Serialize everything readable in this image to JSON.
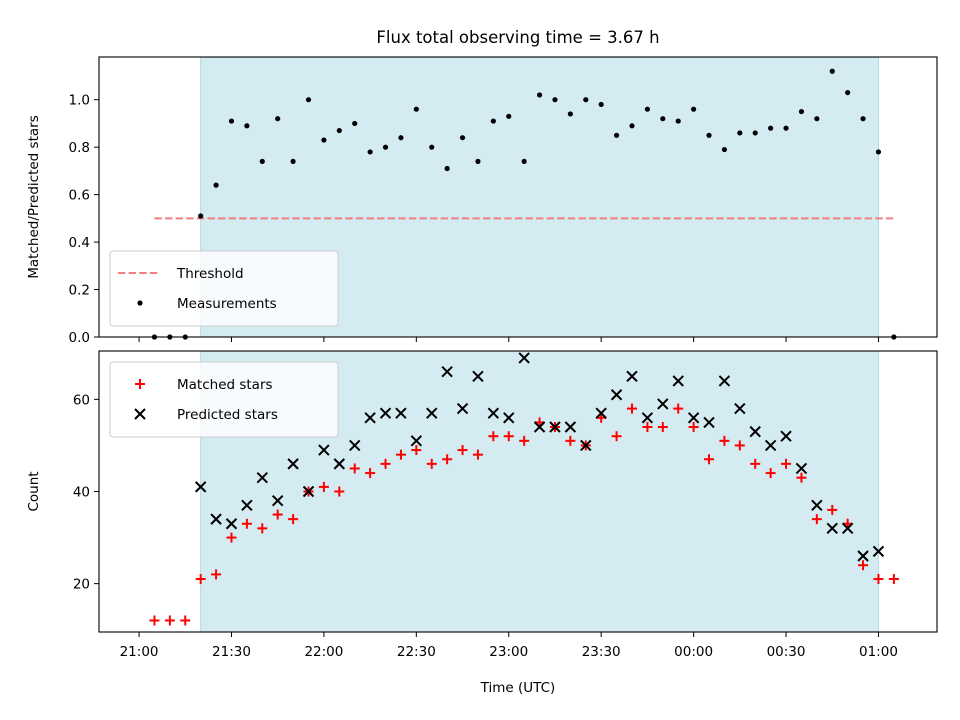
{
  "chart_data": {
    "title": "Flux total observing time = 3.67 h",
    "x_ticks": [
      "21:00",
      "21:30",
      "22:00",
      "22:30",
      "23:00",
      "23:30",
      "00:00",
      "00:30",
      "01:00"
    ],
    "xlabel": "Time (UTC)",
    "x_unit": "minutes after 21:00 UTC",
    "shaded_region": {
      "from": 20,
      "to": 240,
      "color": "#add8e6"
    },
    "panels": [
      {
        "type": "scatter",
        "ylabel": "Matched/Predicted stars",
        "ylim": [
          0,
          1.18
        ],
        "y_ticks": [
          "0.0",
          "0.2",
          "0.4",
          "0.6",
          "0.8",
          "1.0"
        ],
        "legend_position": "lower-left",
        "threshold": {
          "name": "Threshold",
          "value": 0.5,
          "x_range": [
            5,
            245
          ],
          "color": "#f08080"
        },
        "series": [
          {
            "name": "Measurements",
            "color": "#000000",
            "x": [
              5,
              10,
              15,
              20,
              25,
              30,
              35,
              40,
              45,
              50,
              55,
              60,
              65,
              70,
              75,
              80,
              85,
              90,
              95,
              100,
              105,
              110,
              115,
              120,
              125,
              130,
              135,
              140,
              145,
              150,
              155,
              160,
              165,
              170,
              175,
              180,
              185,
              190,
              195,
              200,
              205,
              210,
              215,
              220,
              225,
              230,
              235,
              240,
              245
            ],
            "y": [
              0,
              0,
              0,
              0.51,
              0.64,
              0.91,
              0.89,
              0.74,
              0.92,
              0.74,
              1.0,
              0.83,
              0.87,
              0.9,
              0.78,
              0.8,
              0.84,
              0.96,
              0.8,
              0.71,
              0.84,
              0.74,
              0.91,
              0.93,
              0.74,
              1.02,
              1.0,
              0.94,
              1.0,
              0.98,
              0.85,
              0.89,
              0.96,
              0.92,
              0.91,
              0.96,
              0.85,
              0.79,
              0.86,
              0.86,
              0.88,
              0.88,
              0.95,
              0.92,
              1.12,
              1.03,
              0.92,
              0.78,
              0
            ]
          }
        ]
      },
      {
        "type": "scatter",
        "ylabel": "Count",
        "ylim": [
          9.5,
          70.5
        ],
        "y_ticks": [
          "20",
          "40",
          "60"
        ],
        "legend_position": "upper-left",
        "series": [
          {
            "name": "Matched stars",
            "marker": "+",
            "color": "#ff0000",
            "x": [
              5,
              10,
              15,
              20,
              25,
              30,
              35,
              40,
              45,
              50,
              55,
              60,
              65,
              70,
              75,
              80,
              85,
              90,
              95,
              100,
              105,
              110,
              115,
              120,
              125,
              130,
              135,
              140,
              145,
              150,
              155,
              160,
              165,
              170,
              175,
              180,
              185,
              190,
              195,
              200,
              205,
              210,
              215,
              220,
              225,
              230,
              235,
              240,
              245
            ],
            "y": [
              12,
              12,
              12,
              21,
              22,
              30,
              33,
              32,
              35,
              34,
              40,
              41,
              40,
              45,
              44,
              46,
              48,
              49,
              46,
              47,
              49,
              48,
              52,
              52,
              51,
              55,
              54,
              51,
              50,
              56,
              52,
              58,
              54,
              54,
              58,
              54,
              47,
              51,
              50,
              46,
              44,
              46,
              43,
              34,
              36,
              33,
              24,
              21,
              21
            ]
          },
          {
            "name": "Predicted stars",
            "marker": "x",
            "color": "#000000",
            "x": [
              20,
              25,
              30,
              35,
              40,
              45,
              50,
              55,
              60,
              65,
              70,
              75,
              80,
              85,
              90,
              95,
              100,
              105,
              110,
              115,
              120,
              125,
              130,
              135,
              140,
              145,
              150,
              155,
              160,
              165,
              170,
              175,
              180,
              185,
              190,
              195,
              200,
              205,
              210,
              215,
              220,
              225,
              230,
              235,
              240
            ],
            "y": [
              41,
              34,
              33,
              37,
              43,
              38,
              46,
              40,
              49,
              46,
              50,
              56,
              57,
              57,
              51,
              57,
              66,
              58,
              65,
              57,
              56,
              69,
              54,
              54,
              54,
              50,
              57,
              61,
              65,
              56,
              59,
              64,
              56,
              55,
              64,
              58,
              53,
              50,
              52,
              45,
              37,
              32,
              32,
              26,
              27
            ]
          }
        ]
      }
    ]
  }
}
